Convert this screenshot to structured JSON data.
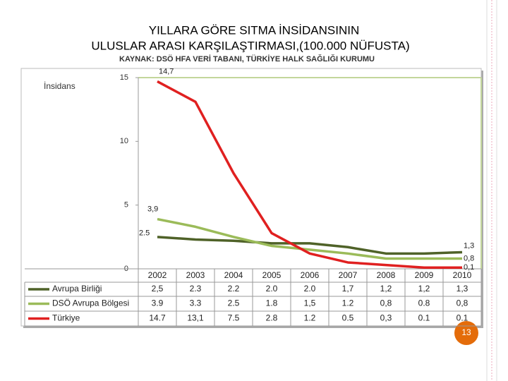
{
  "chart_data": {
    "type": "line",
    "title": "YILLARA GÖRE SITMA İNSİDANSININ",
    "subtitle": "ULUSLAR ARASI KARŞILAŞTIRMASI,(100.000 NÜFUSTA)",
    "source": "KAYNAK: DSÖ HFA VERİ TABANI, TÜRKİYE HALK SAĞLIĞI KURUMU",
    "y_label": "İnsidans",
    "page_number": "13",
    "categories": [
      "2002",
      "2003",
      "2004",
      "2005",
      "2006",
      "2007",
      "2008",
      "2009",
      "2010"
    ],
    "ylim": [
      0,
      15
    ],
    "yticks": [
      0,
      5,
      10,
      15
    ],
    "series": [
      {
        "name": "Avrupa Birliği",
        "color": "#4f6228",
        "values": [
          2.5,
          2.3,
          2.2,
          2.0,
          2.0,
          1.7,
          1.2,
          1.2,
          1.3
        ],
        "value_labels": [
          "2,5",
          "2.3",
          "2.2",
          "2.0",
          "2.0",
          "1,7",
          "1,2",
          "1,2",
          "1,3"
        ],
        "data_labels": [
          "2.5",
          null,
          null,
          null,
          null,
          null,
          null,
          null,
          "1,3"
        ]
      },
      {
        "name": "DSÖ Avrupa Bölgesi",
        "color": "#9bbb59",
        "values": [
          3.9,
          3.3,
          2.5,
          1.8,
          1.5,
          1.2,
          0.8,
          0.8,
          0.8
        ],
        "value_labels": [
          "3.9",
          "3.3",
          "2.5",
          "1.8",
          "1,5",
          "1.2",
          "0,8",
          "0.8",
          "0,8"
        ],
        "data_labels": [
          "3,9",
          null,
          null,
          null,
          null,
          null,
          null,
          null,
          "0,8"
        ]
      },
      {
        "name": "Türkiye",
        "color": "#e02020",
        "values": [
          14.7,
          13.1,
          7.5,
          2.8,
          1.2,
          0.5,
          0.3,
          0.1,
          0.1
        ],
        "value_labels": [
          "14.7",
          "13,1",
          "7.5",
          "2.8",
          "1.2",
          "0.5",
          "0,3",
          "0.1",
          "0.1"
        ],
        "data_labels": [
          "14,7",
          null,
          null,
          null,
          null,
          null,
          null,
          null,
          "0,1"
        ]
      }
    ]
  }
}
